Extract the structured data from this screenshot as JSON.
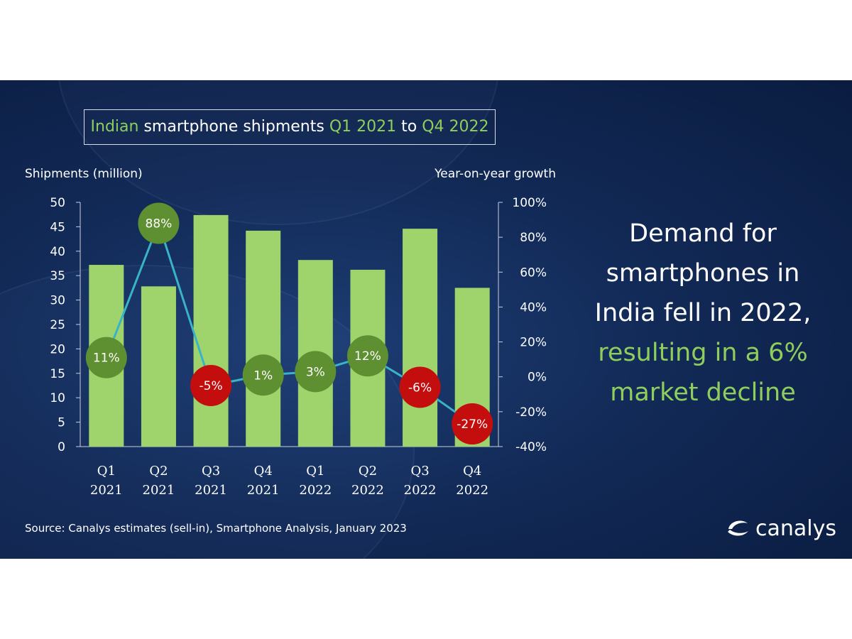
{
  "title": {
    "part1": "Indian",
    "part2": " smartphone shipments ",
    "part3": "Q1 2021",
    "part4": " to ",
    "part5": "Q4 2022"
  },
  "headline": {
    "line1": "Demand for",
    "line2": "smartphones in",
    "line3": "India fell in 2022,",
    "line4": "resulting in a 6%",
    "line5": "market decline"
  },
  "source": "Source: Canalys estimates (sell-in), Smartphone Analysis, January 2023",
  "logo": {
    "text": "canalys"
  },
  "colors": {
    "bar": "#9ed46b",
    "line": "#3ab3c8",
    "growth_positive": "#5e8f30",
    "growth_negative": "#c40d0d",
    "highlight": "#8fce5c"
  },
  "chart_data": {
    "type": "bar",
    "categories": [
      [
        "Q1",
        "2021"
      ],
      [
        "Q2",
        "2021"
      ],
      [
        "Q3",
        "2021"
      ],
      [
        "Q4",
        "2021"
      ],
      [
        "Q1",
        "2022"
      ],
      [
        "Q2",
        "2022"
      ],
      [
        "Q3",
        "2022"
      ],
      [
        "Q4",
        "2022"
      ]
    ],
    "y_left_label": "Shipments (million)",
    "y_right_label": "Year-on-year growth",
    "ylim_left": [
      0,
      50
    ],
    "yticks_left": [
      "0",
      "5",
      "10",
      "15",
      "20",
      "25",
      "30",
      "35",
      "40",
      "45",
      "50"
    ],
    "ylim_right": [
      -40,
      100
    ],
    "yticks_right": [
      "-40%",
      "-20%",
      "0%",
      "20%",
      "40%",
      "60%",
      "80%",
      "100%"
    ],
    "series": [
      {
        "type": "bar",
        "axis": "left",
        "values": [
          37.2,
          32.8,
          47.4,
          44.2,
          38.2,
          36.2,
          44.6,
          32.5
        ]
      },
      {
        "type": "line",
        "axis": "right",
        "values": [
          11,
          88,
          -5,
          1,
          3,
          12,
          -6,
          -27
        ],
        "labels": [
          "11%",
          "88%",
          "-5%",
          "1%",
          "3%",
          "12%",
          "-6%",
          "-27%"
        ]
      }
    ]
  }
}
